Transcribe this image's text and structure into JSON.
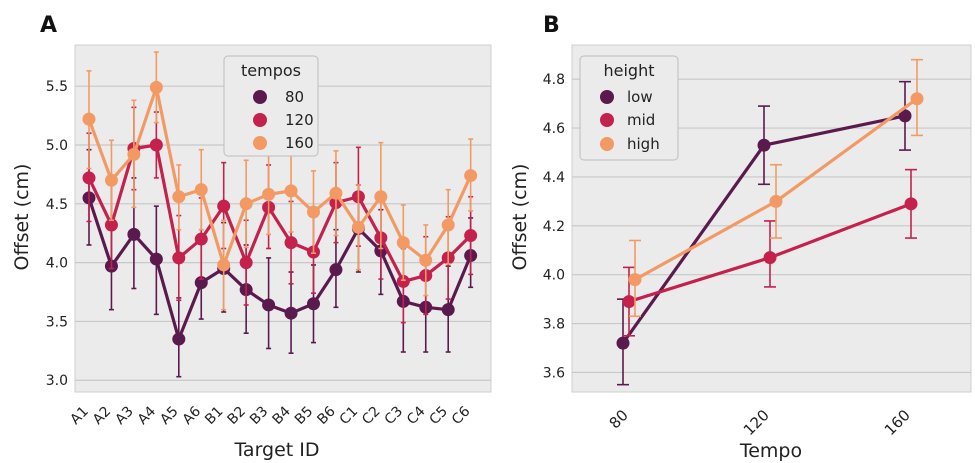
{
  "chart_data": [
    {
      "type": "line",
      "panel_label": "A",
      "xlabel": "Target ID",
      "ylabel": "Offset (cm)",
      "ylim": [
        2.9,
        5.85
      ],
      "yticks": [
        "3.0",
        "3.5",
        "4.0",
        "4.5",
        "5.0",
        "5.5"
      ],
      "grid": true,
      "legend": {
        "title": "tempos",
        "placement": "top-center"
      },
      "categories": [
        "A1",
        "A2",
        "A3",
        "A4",
        "A5",
        "A6",
        "B1",
        "B2",
        "B3",
        "B4",
        "B5",
        "B6",
        "C1",
        "C2",
        "C3",
        "C4",
        "C5",
        "C6"
      ],
      "series": [
        {
          "name": "80",
          "color": "#5b1a4e",
          "values": [
            4.55,
            3.97,
            4.24,
            4.03,
            3.35,
            3.83,
            3.95,
            3.77,
            3.64,
            3.57,
            3.65,
            3.94,
            4.29,
            4.1,
            3.67,
            3.62,
            3.6,
            4.06
          ],
          "err_low": [
            4.15,
            3.6,
            3.78,
            3.56,
            3.03,
            3.52,
            3.58,
            3.4,
            3.27,
            3.23,
            3.32,
            3.62,
            3.92,
            3.73,
            3.24,
            3.24,
            3.24,
            3.79
          ],
          "err_high": [
            4.96,
            4.34,
            4.72,
            4.48,
            3.7,
            4.16,
            4.34,
            4.15,
            4.04,
            3.92,
            3.98,
            4.28,
            4.66,
            4.45,
            4.12,
            4.0,
            3.97,
            4.38
          ]
        },
        {
          "name": "120",
          "color": "#c4214d",
          "values": [
            4.72,
            4.32,
            4.97,
            5.0,
            4.04,
            4.2,
            4.48,
            4.0,
            4.47,
            4.17,
            4.09,
            4.51,
            4.56,
            4.21,
            3.84,
            3.89,
            4.04,
            4.23
          ],
          "err_low": [
            4.35,
            3.95,
            4.62,
            4.72,
            3.68,
            3.86,
            4.12,
            3.64,
            4.12,
            3.82,
            3.74,
            4.17,
            4.14,
            3.86,
            3.49,
            3.56,
            3.69,
            3.9
          ],
          "err_high": [
            5.1,
            4.7,
            5.32,
            5.28,
            4.4,
            4.55,
            4.85,
            4.36,
            4.83,
            4.52,
            4.44,
            4.85,
            4.98,
            4.56,
            4.2,
            4.22,
            4.39,
            4.56
          ]
        },
        {
          "name": "160",
          "color": "#f39a64",
          "values": [
            5.22,
            4.7,
            4.92,
            5.49,
            4.56,
            4.62,
            3.98,
            4.5,
            4.58,
            4.61,
            4.43,
            4.59,
            4.3,
            4.56,
            4.17,
            4.02,
            4.32,
            4.74
          ],
          "err_low": [
            4.8,
            4.36,
            4.47,
            5.19,
            4.28,
            4.28,
            3.6,
            4.13,
            4.24,
            4.26,
            4.08,
            4.23,
            3.94,
            4.12,
            3.85,
            3.72,
            3.99,
            4.44
          ],
          "err_high": [
            5.63,
            5.04,
            5.38,
            5.79,
            4.83,
            4.96,
            4.36,
            4.87,
            4.92,
            4.96,
            4.78,
            4.95,
            4.66,
            5.02,
            4.49,
            4.32,
            4.62,
            5.05
          ]
        }
      ]
    },
    {
      "type": "line",
      "panel_label": "B",
      "xlabel": "Tempo",
      "ylabel": "Offset (cm)",
      "ylim": [
        3.52,
        4.94
      ],
      "yticks": [
        "3.6",
        "3.8",
        "4.0",
        "4.2",
        "4.4",
        "4.6",
        "4.8"
      ],
      "grid": true,
      "legend": {
        "title": "height",
        "placement": "top-left"
      },
      "categories": [
        "80",
        "120",
        "160"
      ],
      "series": [
        {
          "name": "low",
          "color": "#5b1a4e",
          "values": [
            3.72,
            4.53,
            4.65
          ],
          "err_low": [
            3.55,
            4.37,
            4.51
          ],
          "err_high": [
            3.9,
            4.69,
            4.79
          ]
        },
        {
          "name": "mid",
          "color": "#c4214d",
          "values": [
            3.89,
            4.07,
            4.29
          ],
          "err_low": [
            3.75,
            3.95,
            4.15
          ],
          "err_high": [
            4.03,
            4.22,
            4.43
          ]
        },
        {
          "name": "high",
          "color": "#f39a64",
          "values": [
            3.98,
            4.3,
            4.72
          ],
          "err_low": [
            3.83,
            4.15,
            4.57
          ],
          "err_high": [
            4.14,
            4.45,
            4.88
          ]
        }
      ]
    }
  ]
}
